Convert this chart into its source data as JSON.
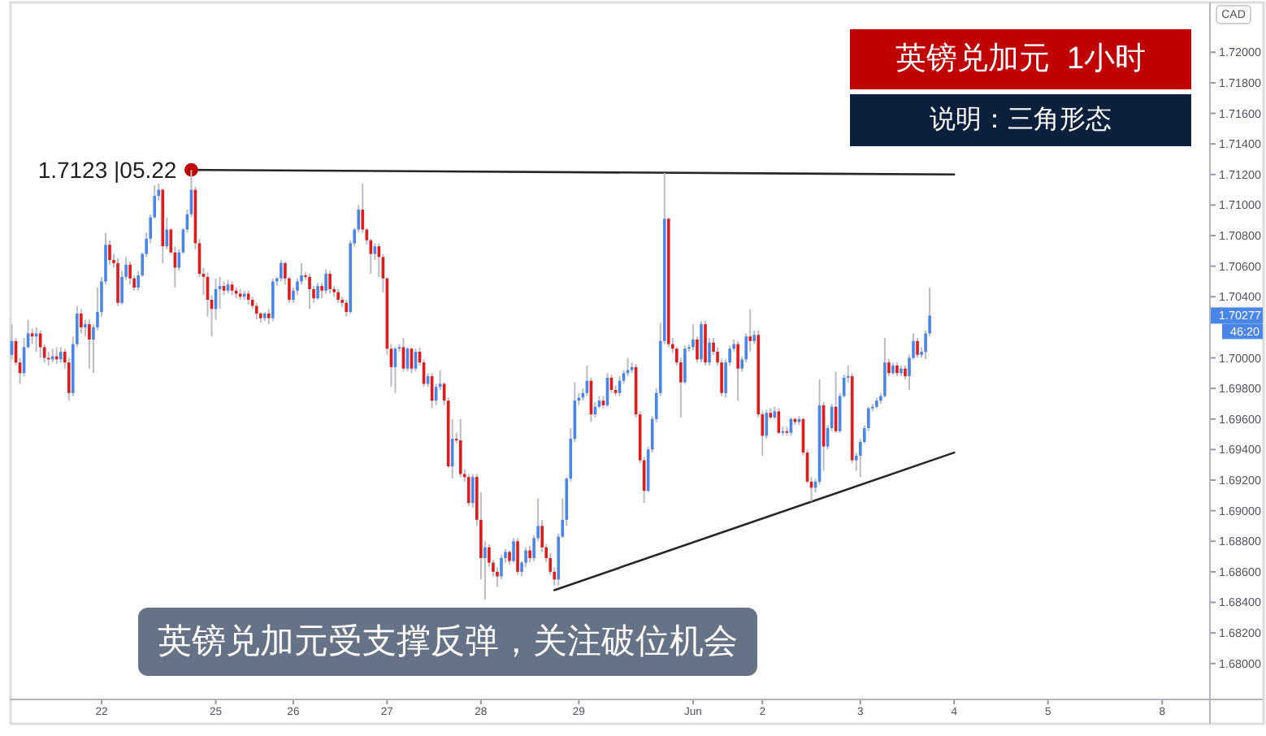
{
  "chart_data": {
    "type": "candlestick",
    "title": "英镑兑加元  1小时",
    "subtitle": "说明：三角形态",
    "ylabel": "CAD",
    "ylim": [
      1.6777,
      1.7231
    ],
    "yticks": [
      {
        "value": 1.68,
        "label": "1.68000"
      },
      {
        "value": 1.682,
        "label": "1.68200"
      },
      {
        "value": 1.684,
        "label": "1.68400"
      },
      {
        "value": 1.686,
        "label": "1.68600"
      },
      {
        "value": 1.688,
        "label": "1.68800"
      },
      {
        "value": 1.69,
        "label": "1.69000"
      },
      {
        "value": 1.692,
        "label": "1.69200"
      },
      {
        "value": 1.694,
        "label": "1.69400"
      },
      {
        "value": 1.696,
        "label": "1.69600"
      },
      {
        "value": 1.698,
        "label": "1.69800"
      },
      {
        "value": 1.7,
        "label": "1.70000"
      },
      {
        "value": 1.704,
        "label": "1.70400"
      },
      {
        "value": 1.706,
        "label": "1.70600"
      },
      {
        "value": 1.708,
        "label": "1.70800"
      },
      {
        "value": 1.71,
        "label": "1.71000"
      },
      {
        "value": 1.712,
        "label": "1.71200"
      },
      {
        "value": 1.714,
        "label": "1.71400"
      },
      {
        "value": 1.716,
        "label": "1.71600"
      },
      {
        "value": 1.718,
        "label": "1.71800"
      },
      {
        "value": 1.72,
        "label": "1.72000"
      }
    ],
    "categories": [
      null,
      null,
      null,
      null,
      null,
      null,
      null,
      null,
      null,
      null,
      null,
      null,
      null,
      null,
      null,
      null,
      null,
      null,
      null,
      null,
      null,
      null,
      "22",
      null,
      null,
      null,
      null,
      null,
      null,
      null,
      null,
      null,
      null,
      null,
      null,
      null,
      null,
      null,
      null,
      null,
      null,
      null,
      null,
      null,
      null,
      null,
      null,
      null,
      null,
      null,
      "25",
      null,
      null,
      null,
      null,
      null,
      null,
      null,
      null,
      null,
      null,
      null,
      null,
      null,
      null,
      null,
      null,
      null,
      null,
      "26",
      null,
      null,
      null,
      null,
      null,
      null,
      null,
      null,
      null,
      null,
      null,
      null,
      null,
      null,
      null,
      null,
      null,
      null,
      null,
      null,
      null,
      null,
      "27",
      null,
      null,
      null,
      null,
      null,
      null,
      null,
      null,
      null,
      null,
      null,
      null,
      null,
      null,
      null,
      null,
      null,
      null,
      null,
      null,
      null,
      null,
      "28",
      null,
      null,
      null,
      null,
      null,
      null,
      null,
      null,
      null,
      null,
      null,
      null,
      null,
      null,
      null,
      null,
      null,
      null,
      null,
      null,
      null,
      null,
      null,
      "29",
      null,
      null,
      null,
      null,
      null,
      null,
      null,
      null,
      null,
      null,
      null,
      null,
      null,
      null,
      null,
      null,
      null,
      null,
      null,
      null,
      null,
      null,
      null,
      null,
      null,
      null,
      null,
      "Jun",
      null,
      null,
      null,
      null,
      null,
      null,
      null,
      null,
      null,
      null,
      null,
      null,
      null,
      null,
      null,
      null,
      "2",
      null,
      null,
      null,
      null,
      null,
      null,
      null,
      null,
      null,
      null,
      null,
      null,
      null,
      null,
      null,
      null,
      null,
      null,
      null,
      null,
      null,
      null,
      null,
      "3",
      null,
      null,
      null,
      null,
      null,
      null,
      null,
      null,
      null,
      null,
      null,
      null,
      null,
      null,
      null,
      null,
      null,
      null,
      null,
      null,
      null,
      null,
      "4",
      null,
      null,
      null,
      null,
      null,
      null,
      null,
      null,
      null,
      null,
      null,
      null,
      null,
      null,
      null,
      null,
      null,
      null,
      null,
      null,
      null,
      null,
      "5",
      null,
      null,
      null,
      null,
      null,
      null,
      null,
      null,
      null,
      null,
      null,
      null,
      null,
      null,
      null,
      null,
      null,
      null,
      null,
      null,
      null,
      null,
      null,
      null,
      null,
      null,
      null,
      "8",
      null,
      null,
      null,
      null,
      null,
      null,
      null,
      null,
      null,
      null,
      null
    ],
    "ohlc": [
      [
        1.7002,
        1.7022,
        1.6999,
        1.7011
      ],
      [
        1.7011,
        1.7013,
        1.6995,
        1.6997
      ],
      [
        1.6997,
        1.7,
        1.6983,
        1.699
      ],
      [
        1.699,
        1.7013,
        1.6988,
        1.7007
      ],
      [
        1.7007,
        1.7025,
        1.7006,
        1.7016
      ],
      [
        1.7016,
        1.7019,
        1.7009,
        1.7014
      ],
      [
        1.7014,
        1.702,
        1.7004,
        1.7016
      ],
      [
        1.7016,
        1.7018,
        1.7,
        1.7007
      ],
      [
        1.7007,
        1.7009,
        1.6997,
        1.7
      ],
      [
        1.7,
        1.7004,
        1.6995,
        1.6999
      ],
      [
        1.6999,
        1.7006,
        1.6997,
        1.7001
      ],
      [
        1.7001,
        1.7007,
        1.6996,
        1.6999
      ],
      [
        1.6999,
        1.7007,
        1.6997,
        1.7004
      ],
      [
        1.7004,
        1.7006,
        1.6993,
        1.6997
      ],
      [
        1.6997,
        1.7,
        1.6972,
        1.6977
      ],
      [
        1.6977,
        1.7014,
        1.6975,
        1.7009
      ],
      [
        1.7009,
        1.7034,
        1.7007,
        1.7029
      ],
      [
        1.7029,
        1.7032,
        1.7016,
        1.702
      ],
      [
        1.702,
        1.7025,
        1.7014,
        1.7022
      ],
      [
        1.7022,
        1.7025,
        1.6993,
        1.7012
      ],
      [
        1.7012,
        1.7022,
        1.699,
        1.702
      ],
      [
        1.702,
        1.7046,
        1.7018,
        1.703
      ],
      [
        1.703,
        1.7053,
        1.7027,
        1.705
      ],
      [
        1.705,
        1.7082,
        1.7048,
        1.7074
      ],
      [
        1.7074,
        1.7077,
        1.7061,
        1.7064
      ],
      [
        1.7064,
        1.7068,
        1.7059,
        1.7062
      ],
      [
        1.7062,
        1.7065,
        1.7034,
        1.7036
      ],
      [
        1.7036,
        1.7057,
        1.7035,
        1.7053
      ],
      [
        1.7053,
        1.7066,
        1.7051,
        1.7061
      ],
      [
        1.7061,
        1.7063,
        1.7048,
        1.7052
      ],
      [
        1.7052,
        1.7054,
        1.7044,
        1.7046
      ],
      [
        1.7046,
        1.7057,
        1.7044,
        1.7054
      ],
      [
        1.7054,
        1.7069,
        1.7053,
        1.7068
      ],
      [
        1.7068,
        1.7082,
        1.7066,
        1.7078
      ],
      [
        1.7078,
        1.7094,
        1.7075,
        1.7092
      ],
      [
        1.7092,
        1.7113,
        1.7091,
        1.7106
      ],
      [
        1.7106,
        1.7114,
        1.7103,
        1.711
      ],
      [
        1.711,
        1.7111,
        1.7062,
        1.7073
      ],
      [
        1.7073,
        1.7092,
        1.7071,
        1.7084
      ],
      [
        1.7084,
        1.7085,
        1.7068,
        1.7069
      ],
      [
        1.7069,
        1.7073,
        1.7046,
        1.7059
      ],
      [
        1.7059,
        1.7071,
        1.7057,
        1.7069
      ],
      [
        1.7069,
        1.7085,
        1.7068,
        1.7084
      ],
      [
        1.7084,
        1.7097,
        1.7082,
        1.7094
      ],
      [
        1.7094,
        1.7123,
        1.7092,
        1.711
      ],
      [
        1.711,
        1.7112,
        1.7071,
        1.7075
      ],
      [
        1.7075,
        1.7078,
        1.7053,
        1.7055
      ],
      [
        1.7055,
        1.7059,
        1.7041,
        1.7053
      ],
      [
        1.7053,
        1.7056,
        1.7027,
        1.7038
      ],
      [
        1.7038,
        1.7041,
        1.7014,
        1.7032
      ],
      [
        1.7032,
        1.7052,
        1.7025,
        1.7045
      ],
      [
        1.7045,
        1.7053,
        1.7032,
        1.7047
      ],
      [
        1.7047,
        1.705,
        1.7041,
        1.7044
      ],
      [
        1.7044,
        1.7051,
        1.7042,
        1.7048
      ],
      [
        1.7048,
        1.705,
        1.7041,
        1.7044
      ],
      [
        1.7044,
        1.7046,
        1.7039,
        1.7042
      ],
      [
        1.7042,
        1.7045,
        1.7038,
        1.704
      ],
      [
        1.704,
        1.7044,
        1.7038,
        1.7042
      ],
      [
        1.7042,
        1.7044,
        1.7035,
        1.7038
      ],
      [
        1.7038,
        1.704,
        1.7032,
        1.7034
      ],
      [
        1.7034,
        1.7036,
        1.7025,
        1.7029
      ],
      [
        1.7029,
        1.703,
        1.7023,
        1.7026
      ],
      [
        1.7026,
        1.703,
        1.7024,
        1.7029
      ],
      [
        1.7029,
        1.7032,
        1.7022,
        1.7026
      ],
      [
        1.7026,
        1.7052,
        1.7024,
        1.705
      ],
      [
        1.705,
        1.7053,
        1.7047,
        1.7052
      ],
      [
        1.7052,
        1.7064,
        1.705,
        1.7062
      ],
      [
        1.7062,
        1.7063,
        1.7048,
        1.7052
      ],
      [
        1.7052,
        1.7053,
        1.7036,
        1.7038
      ],
      [
        1.7038,
        1.7046,
        1.7036,
        1.7044
      ],
      [
        1.7044,
        1.7052,
        1.7041,
        1.705
      ],
      [
        1.705,
        1.7062,
        1.7048,
        1.7054
      ],
      [
        1.7054,
        1.7056,
        1.7051,
        1.7053
      ],
      [
        1.7053,
        1.7055,
        1.7032,
        1.7045
      ],
      [
        1.7045,
        1.7047,
        1.7036,
        1.7039
      ],
      [
        1.7039,
        1.7049,
        1.7038,
        1.7047
      ],
      [
        1.7047,
        1.7049,
        1.7039,
        1.7044
      ],
      [
        1.7044,
        1.7058,
        1.7042,
        1.7055
      ],
      [
        1.7055,
        1.7057,
        1.7042,
        1.7045
      ],
      [
        1.7045,
        1.7047,
        1.704,
        1.7043
      ],
      [
        1.7043,
        1.7045,
        1.7036,
        1.7038
      ],
      [
        1.7038,
        1.704,
        1.7033,
        1.7036
      ],
      [
        1.7036,
        1.7038,
        1.7027,
        1.703
      ],
      [
        1.703,
        1.7077,
        1.7029,
        1.7075
      ],
      [
        1.7075,
        1.7085,
        1.7073,
        1.7084
      ],
      [
        1.7084,
        1.71,
        1.7082,
        1.7097
      ],
      [
        1.7097,
        1.7114,
        1.7082,
        1.7084
      ],
      [
        1.7084,
        1.7085,
        1.7074,
        1.7077
      ],
      [
        1.7077,
        1.7078,
        1.7055,
        1.7068
      ],
      [
        1.7068,
        1.7075,
        1.7064,
        1.7073
      ],
      [
        1.7073,
        1.7075,
        1.7053,
        1.7066
      ],
      [
        1.7066,
        1.7068,
        1.7043,
        1.7052
      ],
      [
        1.7052,
        1.7053,
        1.7002,
        1.7006
      ],
      [
        1.7006,
        1.7009,
        1.6981,
        1.6994
      ],
      [
        1.6994,
        1.7007,
        1.6977,
        1.7006
      ],
      [
        1.7006,
        1.7009,
        1.7004,
        1.7007
      ],
      [
        1.7007,
        1.7013,
        1.6991,
        1.6993
      ],
      [
        1.6993,
        1.7007,
        1.6991,
        1.7006
      ],
      [
        1.7006,
        1.7007,
        1.699,
        1.6993
      ],
      [
        1.6993,
        1.7006,
        1.6991,
        1.7004
      ],
      [
        1.7004,
        1.7007,
        1.6995,
        1.6997
      ],
      [
        1.6997,
        1.6999,
        1.6981,
        1.6983
      ],
      [
        1.6983,
        1.699,
        1.6981,
        1.6988
      ],
      [
        1.6988,
        1.699,
        1.6967,
        1.6972
      ],
      [
        1.6972,
        1.6983,
        1.6969,
        1.6981
      ],
      [
        1.6981,
        1.6992,
        1.6979,
        1.6983
      ],
      [
        1.6983,
        1.6984,
        1.6969,
        1.6972
      ],
      [
        1.6972,
        1.6974,
        1.6928,
        1.6929
      ],
      [
        1.6929,
        1.696,
        1.6921,
        1.6947
      ],
      [
        1.6947,
        1.6951,
        1.6944,
        1.6946
      ],
      [
        1.6946,
        1.696,
        1.6922,
        1.6924
      ],
      [
        1.6924,
        1.6927,
        1.6919,
        1.6922
      ],
      [
        1.6922,
        1.6924,
        1.6903,
        1.6905
      ],
      [
        1.6905,
        1.6924,
        1.6902,
        1.6922
      ],
      [
        1.6922,
        1.6924,
        1.689,
        1.6894
      ],
      [
        1.6894,
        1.6912,
        1.6855,
        1.6869
      ],
      [
        1.6869,
        1.688,
        1.6842,
        1.6876
      ],
      [
        1.6876,
        1.6878,
        1.6863,
        1.6866
      ],
      [
        1.6866,
        1.6868,
        1.6857,
        1.686
      ],
      [
        1.686,
        1.6863,
        1.685,
        1.6857
      ],
      [
        1.6857,
        1.6871,
        1.6855,
        1.6869
      ],
      [
        1.6869,
        1.6875,
        1.6866,
        1.6873
      ],
      [
        1.6873,
        1.6874,
        1.6865,
        1.6867
      ],
      [
        1.6867,
        1.6882,
        1.6866,
        1.688
      ],
      [
        1.688,
        1.6882,
        1.6858,
        1.686
      ],
      [
        1.686,
        1.6867,
        1.6857,
        1.6866
      ],
      [
        1.6866,
        1.6876,
        1.6863,
        1.6874
      ],
      [
        1.6874,
        1.6877,
        1.6866,
        1.6869
      ],
      [
        1.6869,
        1.6884,
        1.6867,
        1.6882
      ],
      [
        1.6882,
        1.6908,
        1.688,
        1.689
      ],
      [
        1.689,
        1.6894,
        1.6873,
        1.6876
      ],
      [
        1.6876,
        1.6878,
        1.6866,
        1.6869
      ],
      [
        1.6869,
        1.6872,
        1.6858,
        1.686
      ],
      [
        1.686,
        1.6863,
        1.6851,
        1.6855
      ],
      [
        1.6855,
        1.6885,
        1.6851,
        1.6883
      ],
      [
        1.6883,
        1.6908,
        1.6882,
        1.6894
      ],
      [
        1.6894,
        1.6922,
        1.689,
        1.6921
      ],
      [
        1.6921,
        1.6954,
        1.6919,
        1.6947
      ],
      [
        1.6947,
        1.6984,
        1.6945,
        1.6972
      ],
      [
        1.6972,
        1.6977,
        1.6969,
        1.6974
      ],
      [
        1.6974,
        1.698,
        1.6972,
        1.6977
      ],
      [
        1.6977,
        1.6995,
        1.6975,
        1.6985
      ],
      [
        1.6985,
        1.6987,
        1.6958,
        1.6963
      ],
      [
        1.6963,
        1.6971,
        1.6961,
        1.6968
      ],
      [
        1.6968,
        1.6975,
        1.6967,
        1.6972
      ],
      [
        1.6972,
        1.6975,
        1.6967,
        1.6969
      ],
      [
        1.6969,
        1.699,
        1.6968,
        1.6987
      ],
      [
        1.6987,
        1.6989,
        1.6977,
        1.6979
      ],
      [
        1.6979,
        1.6982,
        1.6975,
        1.6977
      ],
      [
        1.6977,
        1.6988,
        1.6975,
        1.6985
      ],
      [
        1.6985,
        1.6992,
        1.6983,
        1.699
      ],
      [
        1.699,
        1.7,
        1.6988,
        1.6992
      ],
      [
        1.6992,
        1.6997,
        1.699,
        1.6994
      ],
      [
        1.6994,
        1.6996,
        1.6961,
        1.6963
      ],
      [
        1.6963,
        1.6965,
        1.6931,
        1.6933
      ],
      [
        1.6933,
        1.6935,
        1.6905,
        1.6913
      ],
      [
        1.6913,
        1.6942,
        1.6912,
        1.694
      ],
      [
        1.694,
        1.6962,
        1.6938,
        1.696
      ],
      [
        1.696,
        1.698,
        1.6958,
        1.6977
      ],
      [
        1.6977,
        1.7023,
        1.6975,
        1.7011
      ],
      [
        1.7011,
        1.7121,
        1.7009,
        1.7091
      ],
      [
        1.7091,
        1.7092,
        1.7007,
        1.7009
      ],
      [
        1.7009,
        1.7013,
        1.7003,
        1.7006
      ],
      [
        1.7006,
        1.7007,
        1.6995,
        1.6997
      ],
      [
        1.6997,
        1.7,
        1.6961,
        1.6984
      ],
      [
        1.6984,
        1.7008,
        1.6983,
        1.7006
      ],
      [
        1.7006,
        1.7009,
        1.7004,
        1.7007
      ],
      [
        1.7007,
        1.7022,
        1.7005,
        1.7012
      ],
      [
        1.7012,
        1.7014,
        1.6997,
        1.6999
      ],
      [
        1.6999,
        1.7024,
        1.6997,
        1.7022
      ],
      [
        1.7022,
        1.7024,
        1.6995,
        1.6997
      ],
      [
        1.6997,
        1.7013,
        1.6995,
        1.701
      ],
      [
        1.701,
        1.7013,
        1.7002,
        1.7004
      ],
      [
        1.7004,
        1.7007,
        1.6995,
        1.6997
      ],
      [
        1.6997,
        1.6999,
        1.6975,
        1.6977
      ],
      [
        1.6977,
        1.6999,
        1.6974,
        1.6997
      ],
      [
        1.6997,
        1.7008,
        1.6995,
        1.7006
      ],
      [
        1.7006,
        1.7012,
        1.7004,
        1.7009
      ],
      [
        1.7009,
        1.7011,
        1.6972,
        1.6993
      ],
      [
        1.6993,
        1.7001,
        1.6991,
        1.6999
      ],
      [
        1.6999,
        1.7016,
        1.6997,
        1.7014
      ],
      [
        1.7014,
        1.7032,
        1.7004,
        1.7011
      ],
      [
        1.7011,
        1.7018,
        1.7009,
        1.7015
      ],
      [
        1.7015,
        1.7018,
        1.6961,
        1.6963
      ],
      [
        1.6963,
        1.6965,
        1.6936,
        1.6949
      ],
      [
        1.6949,
        1.6966,
        1.6947,
        1.6964
      ],
      [
        1.6964,
        1.6967,
        1.696,
        1.6961
      ],
      [
        1.6961,
        1.6968,
        1.696,
        1.6965
      ],
      [
        1.6965,
        1.6967,
        1.695,
        1.6951
      ],
      [
        1.6951,
        1.6955,
        1.6949,
        1.6952
      ],
      [
        1.6952,
        1.6955,
        1.6949,
        1.6951
      ],
      [
        1.6951,
        1.6961,
        1.6949,
        1.696
      ],
      [
        1.696,
        1.6961,
        1.6956,
        1.6958
      ],
      [
        1.6958,
        1.6962,
        1.6956,
        1.696
      ],
      [
        1.696,
        1.6961,
        1.6936,
        1.6938
      ],
      [
        1.6938,
        1.694,
        1.6918,
        1.6919
      ],
      [
        1.6919,
        1.6922,
        1.6906,
        1.6915
      ],
      [
        1.6915,
        1.6921,
        1.6912,
        1.6919
      ],
      [
        1.6919,
        1.6986,
        1.6917,
        1.6969
      ],
      [
        1.6969,
        1.6971,
        1.6926,
        1.6942
      ],
      [
        1.6942,
        1.6956,
        1.694,
        1.6954
      ],
      [
        1.6954,
        1.697,
        1.6952,
        1.6968
      ],
      [
        1.6968,
        1.6991,
        1.6951,
        1.6952
      ],
      [
        1.6952,
        1.6977,
        1.6951,
        1.6975
      ],
      [
        1.6975,
        1.6989,
        1.6974,
        1.6987
      ],
      [
        1.6987,
        1.6995,
        1.6984,
        1.6988
      ],
      [
        1.6988,
        1.699,
        1.6931,
        1.6933
      ],
      [
        1.6933,
        1.6938,
        1.6926,
        1.6936
      ],
      [
        1.6936,
        1.6947,
        1.6922,
        1.6945
      ],
      [
        1.6945,
        1.6956,
        1.6944,
        1.6954
      ],
      [
        1.6954,
        1.6968,
        1.6952,
        1.6967
      ],
      [
        1.6967,
        1.697,
        1.6965,
        1.6968
      ],
      [
        1.6968,
        1.6974,
        1.6967,
        1.6972
      ],
      [
        1.6972,
        1.6977,
        1.697,
        1.6975
      ],
      [
        1.6975,
        1.7013,
        1.6974,
        1.6997
      ],
      [
        1.6997,
        1.6999,
        1.6988,
        1.699
      ],
      [
        1.699,
        1.6997,
        1.6989,
        1.6995
      ],
      [
        1.6995,
        1.6997,
        1.6988,
        1.699
      ],
      [
        1.699,
        1.6995,
        1.6988,
        1.6993
      ],
      [
        1.6993,
        1.6995,
        1.6986,
        1.6988
      ],
      [
        1.6988,
        1.7002,
        1.6979,
        1.7
      ],
      [
        1.7,
        1.7016,
        1.6999,
        1.7011
      ],
      [
        1.7011,
        1.7013,
        1.7,
        1.7002
      ],
      [
        1.7002,
        1.7007,
        1.7,
        1.7004
      ],
      [
        1.7004,
        1.7018,
        1.6999,
        1.7016
      ],
      [
        1.7016,
        1.7046,
        1.7014,
        1.70277
      ],
      null,
      null,
      null,
      null,
      null,
      null,
      null,
      null,
      null,
      null,
      null,
      null,
      null,
      null,
      null,
      null,
      null,
      null,
      null,
      null,
      null,
      null,
      null,
      null,
      null,
      null,
      null,
      null,
      null,
      null,
      null,
      null,
      null,
      null,
      null,
      null,
      null,
      null,
      null,
      null,
      null,
      null,
      null,
      null,
      null,
      null,
      null,
      null,
      null,
      null,
      null,
      null,
      null,
      null,
      null,
      null,
      null,
      null,
      null,
      null,
      null,
      null,
      null,
      null,
      null,
      null,
      null,
      null
    ],
    "colors": [
      "#4a86e8",
      "#e01b1b",
      "#e01b1b",
      "#4a86e8",
      "#4a86e8",
      "#e01b1b",
      "#4a86e8",
      "#e01b1b",
      "#e01b1b",
      "#e01b1b",
      "#4a86e8",
      "#e01b1b",
      "#4a86e8",
      "#e01b1b",
      "#e01b1b",
      "#4a86e8",
      "#4a86e8",
      "#e01b1b",
      "#4a86e8",
      "#e01b1b",
      "#4a86e8",
      "#4a86e8",
      "#4a86e8",
      "#4a86e8",
      "#e01b1b",
      "#e01b1b",
      "#e01b1b",
      "#4a86e8",
      "#4a86e8",
      "#e01b1b",
      "#e01b1b",
      "#4a86e8",
      "#4a86e8",
      "#4a86e8",
      "#4a86e8",
      "#4a86e8",
      "#4a86e8",
      "#e01b1b",
      "#4a86e8",
      "#e01b1b",
      "#e01b1b",
      "#4a86e8",
      "#4a86e8",
      "#4a86e8",
      "#4a86e8",
      "#e01b1b",
      "#e01b1b",
      "#e01b1b",
      "#e01b1b",
      "#e01b1b",
      "#4a86e8",
      "#4a86e8",
      "#e01b1b",
      "#4a86e8",
      "#e01b1b",
      "#e01b1b",
      "#e01b1b",
      "#4a86e8",
      "#e01b1b",
      "#e01b1b",
      "#e01b1b",
      "#e01b1b",
      "#4a86e8",
      "#e01b1b",
      "#4a86e8",
      "#4a86e8",
      "#4a86e8",
      "#e01b1b",
      "#e01b1b",
      "#4a86e8",
      "#4a86e8",
      "#4a86e8",
      "#e01b1b",
      "#e01b1b",
      "#e01b1b",
      "#4a86e8",
      "#e01b1b",
      "#4a86e8",
      "#e01b1b",
      "#e01b1b",
      "#e01b1b",
      "#e01b1b",
      "#e01b1b",
      "#4a86e8",
      "#4a86e8",
      "#4a86e8",
      "#e01b1b",
      "#e01b1b",
      "#e01b1b",
      "#4a86e8",
      "#e01b1b",
      "#e01b1b",
      "#e01b1b",
      "#e01b1b",
      "#4a86e8",
      "#4a86e8",
      "#e01b1b",
      "#4a86e8",
      "#e01b1b",
      "#4a86e8",
      "#e01b1b",
      "#e01b1b",
      "#4a86e8",
      "#e01b1b",
      "#4a86e8",
      "#4a86e8",
      "#e01b1b",
      "#e01b1b",
      "#4a86e8",
      "#e01b1b",
      "#e01b1b",
      "#e01b1b",
      "#e01b1b",
      "#4a86e8",
      "#e01b1b",
      "#e01b1b",
      "#4a86e8",
      "#e01b1b",
      "#e01b1b",
      "#e01b1b",
      "#4a86e8",
      "#4a86e8",
      "#e01b1b",
      "#4a86e8",
      "#e01b1b",
      "#4a86e8",
      "#4a86e8",
      "#e01b1b",
      "#4a86e8",
      "#4a86e8",
      "#e01b1b",
      "#e01b1b",
      "#e01b1b",
      "#e01b1b",
      "#4a86e8",
      "#4a86e8",
      "#4a86e8",
      "#4a86e8",
      "#4a86e8",
      "#4a86e8",
      "#4a86e8",
      "#4a86e8",
      "#e01b1b",
      "#4a86e8",
      "#4a86e8",
      "#e01b1b",
      "#4a86e8",
      "#e01b1b",
      "#e01b1b",
      "#4a86e8",
      "#4a86e8",
      "#4a86e8",
      "#4a86e8",
      "#e01b1b",
      "#e01b1b",
      "#e01b1b",
      "#4a86e8",
      "#4a86e8",
      "#4a86e8",
      "#4a86e8",
      "#4a86e8",
      "#e01b1b",
      "#e01b1b",
      "#e01b1b",
      "#e01b1b",
      "#4a86e8",
      "#4a86e8",
      "#4a86e8",
      "#e01b1b",
      "#4a86e8",
      "#e01b1b",
      "#4a86e8",
      "#e01b1b",
      "#e01b1b",
      "#e01b1b",
      "#4a86e8",
      "#4a86e8",
      "#4a86e8",
      "#e01b1b",
      "#4a86e8",
      "#4a86e8",
      "#e01b1b",
      "#4a86e8",
      "#e01b1b",
      "#e01b1b",
      "#4a86e8",
      "#e01b1b",
      "#4a86e8",
      "#e01b1b",
      "#4a86e8",
      "#e01b1b",
      "#4a86e8",
      "#e01b1b",
      "#4a86e8",
      "#e01b1b",
      "#e01b1b",
      "#e01b1b",
      "#4a86e8",
      "#4a86e8",
      "#e01b1b",
      "#4a86e8",
      "#4a86e8",
      "#e01b1b",
      "#4a86e8",
      "#4a86e8",
      "#4a86e8",
      "#e01b1b",
      "#4a86e8",
      "#4a86e8",
      "#4a86e8",
      "#4a86e8",
      "#4a86e8",
      "#4a86e8",
      "#4a86e8",
      "#4a86e8",
      "#e01b1b",
      "#4a86e8",
      "#e01b1b",
      "#4a86e8",
      "#e01b1b",
      "#4a86e8",
      "#4a86e8",
      "#e01b1b",
      "#4a86e8",
      "#4a86e8",
      "#4a86e8",
      null,
      null,
      null,
      null,
      null,
      null,
      null,
      null,
      null,
      null,
      null,
      null,
      null,
      null,
      null,
      null,
      null,
      null,
      null,
      null,
      null,
      null,
      null,
      null,
      null,
      null,
      null,
      null,
      null,
      null,
      null,
      null,
      null,
      null,
      null,
      null,
      null,
      null,
      null,
      null,
      null,
      null,
      null,
      null,
      null,
      null,
      null,
      null,
      null,
      null,
      null,
      null,
      null,
      null,
      null,
      null,
      null,
      null,
      null,
      null,
      null,
      null,
      null,
      null,
      null,
      null,
      null,
      null
    ],
    "series": [
      {
        "type": "line",
        "color": "#262626",
        "values": [
          null,
          null,
          null,
          null,
          null,
          null,
          null,
          null,
          null,
          null,
          null,
          null,
          null,
          null,
          null,
          null,
          null,
          null,
          null,
          null,
          null,
          null,
          null,
          null,
          null,
          null,
          null,
          null,
          null,
          null,
          null,
          null,
          null,
          null,
          null,
          null,
          null,
          null,
          null,
          null,
          null,
          null,
          null,
          null,
          1.7123,
          null,
          null,
          null,
          null,
          null,
          null,
          null,
          null,
          null,
          null,
          null,
          null,
          null,
          null,
          null,
          null,
          null,
          null,
          null,
          null,
          null,
          null,
          null,
          null,
          null,
          null,
          null,
          null,
          null,
          null,
          null,
          null,
          null,
          null,
          null,
          null,
          null,
          null,
          null,
          null,
          null,
          null,
          null,
          null,
          null,
          null,
          null,
          null,
          null,
          null,
          null,
          null,
          null,
          null,
          null,
          null,
          null,
          null,
          null,
          null,
          null,
          null,
          null,
          null,
          null,
          null,
          null,
          null,
          null,
          null,
          null,
          null,
          null,
          null,
          null,
          null,
          null,
          null,
          null,
          null,
          null,
          null,
          null,
          null,
          null,
          null,
          null,
          null,
          null,
          null,
          null,
          null,
          null,
          null,
          null,
          null,
          null,
          null,
          null,
          null,
          null,
          null,
          null,
          null,
          null,
          null,
          null,
          null,
          null,
          null,
          null,
          null,
          null,
          null,
          null,
          null,
          null,
          null,
          null,
          null,
          null,
          null,
          null,
          null,
          null,
          null,
          null,
          null,
          null,
          null,
          null,
          null,
          null,
          null,
          null,
          null,
          null,
          null,
          null,
          null,
          null,
          null,
          null,
          null,
          null,
          null,
          null,
          null,
          null,
          null,
          null,
          null,
          null,
          null,
          null,
          null,
          null,
          null,
          null,
          null,
          null,
          null,
          null,
          null,
          null,
          null,
          null,
          null,
          null,
          null,
          null,
          null,
          null,
          null,
          null,
          null,
          null,
          null,
          null,
          null,
          null,
          null,
          null,
          null,
          null,
          null,
          1.712,
          null,
          null,
          null,
          null,
          null,
          null,
          null,
          null,
          null,
          null,
          null,
          null,
          null,
          null,
          null,
          null,
          null,
          null,
          null,
          null,
          null,
          null,
          null,
          null,
          null,
          null,
          null,
          null,
          null,
          null,
          null,
          null,
          null,
          null,
          null,
          null,
          null,
          null,
          null,
          null,
          null,
          null,
          null,
          null,
          null,
          null,
          null,
          null,
          null,
          null,
          null,
          null,
          null,
          null,
          null,
          null,
          null,
          null,
          null,
          null,
          null,
          null
        ]
      },
      {
        "type": "line",
        "color": "#262626",
        "values": [
          null,
          null,
          null,
          null,
          null,
          null,
          null,
          null,
          null,
          null,
          null,
          null,
          null,
          null,
          null,
          null,
          null,
          null,
          null,
          null,
          null,
          null,
          null,
          null,
          null,
          null,
          null,
          null,
          null,
          null,
          null,
          null,
          null,
          null,
          null,
          null,
          null,
          null,
          null,
          null,
          null,
          null,
          null,
          null,
          null,
          null,
          null,
          null,
          null,
          null,
          null,
          null,
          null,
          null,
          null,
          null,
          null,
          null,
          null,
          null,
          null,
          null,
          null,
          null,
          null,
          null,
          null,
          null,
          null,
          null,
          null,
          null,
          null,
          null,
          null,
          null,
          null,
          null,
          null,
          null,
          null,
          null,
          null,
          null,
          null,
          null,
          null,
          null,
          null,
          null,
          null,
          null,
          null,
          null,
          null,
          null,
          null,
          null,
          null,
          null,
          null,
          null,
          null,
          null,
          null,
          null,
          null,
          null,
          null,
          null,
          null,
          null,
          null,
          null,
          null,
          null,
          null,
          null,
          null,
          null,
          null,
          null,
          null,
          null,
          null,
          null,
          null,
          null,
          null,
          null,
          null,
          null,
          null,
          1.6848,
          null,
          null,
          null,
          null,
          null,
          null,
          null,
          null,
          null,
          null,
          null,
          null,
          null,
          null,
          null,
          null,
          null,
          null,
          null,
          null,
          null,
          null,
          null,
          null,
          null,
          null,
          null,
          null,
          null,
          null,
          null,
          null,
          null,
          null,
          null,
          null,
          null,
          null,
          null,
          null,
          null,
          null,
          null,
          null,
          null,
          null,
          null,
          null,
          null,
          null,
          null,
          null,
          null,
          null,
          null,
          null,
          null,
          null,
          null,
          null,
          null,
          null,
          null,
          null,
          null,
          null,
          null,
          null,
          null,
          null,
          null,
          null,
          null,
          null,
          null,
          null,
          null,
          null,
          null,
          null,
          null,
          null,
          null,
          null,
          null,
          null,
          null,
          null,
          null,
          null,
          null,
          null,
          null,
          null,
          null,
          null,
          null,
          1.6938,
          null,
          null,
          null,
          null,
          null,
          null,
          null,
          null,
          null,
          null,
          null,
          null,
          null,
          null,
          null,
          null,
          null,
          null,
          null,
          null,
          null,
          null,
          null,
          null,
          null,
          null,
          null,
          null,
          null,
          null,
          null,
          null,
          null,
          null,
          null,
          null,
          null,
          null,
          null,
          null,
          null,
          null,
          null,
          null,
          null,
          null,
          null,
          null,
          null,
          null,
          null,
          null,
          null,
          null,
          null,
          null,
          null,
          null,
          null,
          null,
          null,
          null
        ]
      }
    ],
    "annotations": [
      "1.7123 |05.22",
      "1.70277",
      "46:20",
      "英镑兑加元受支撑反弹，关注破位机会"
    ]
  }
}
